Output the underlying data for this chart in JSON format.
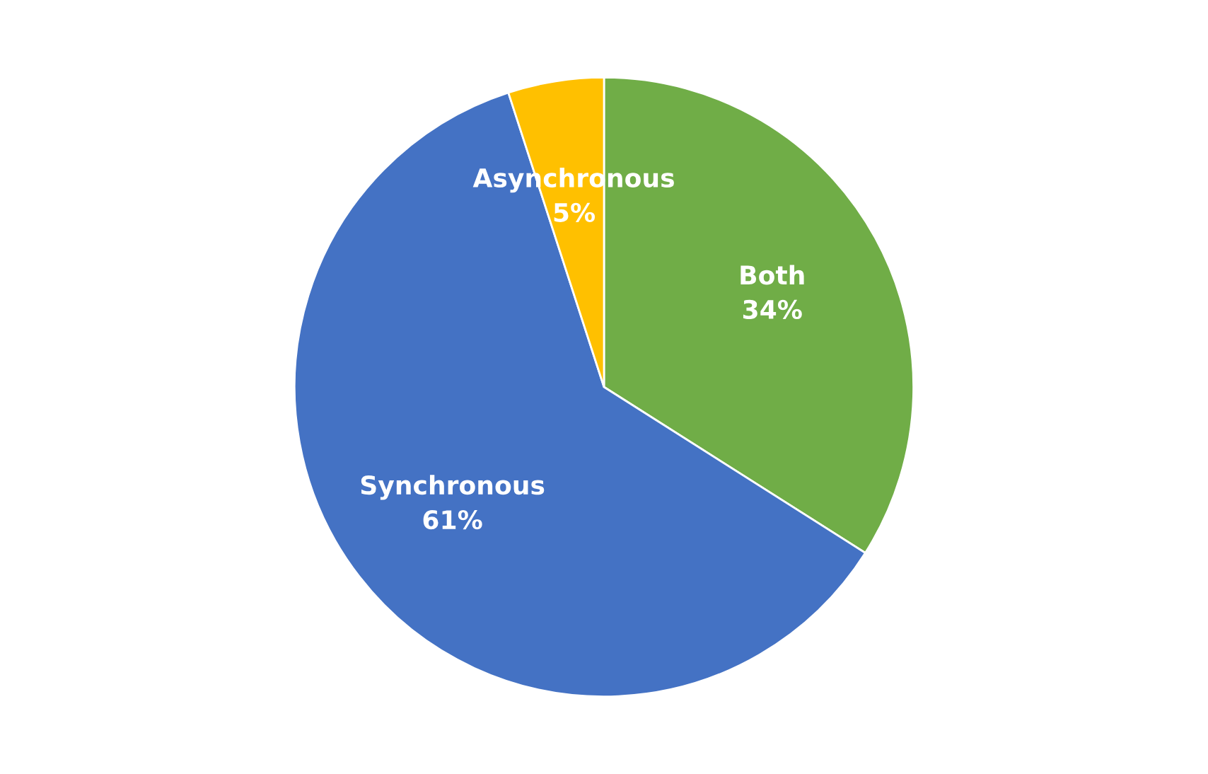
{
  "chart_data": {
    "type": "pie",
    "categories": [
      "Both",
      "Synchronous",
      "Asynchronous"
    ],
    "values": [
      34,
      61,
      5
    ],
    "value_labels": [
      "34%",
      "61%",
      "5%"
    ],
    "colors": [
      "#70ad47",
      "#4472c4",
      "#ffc000"
    ],
    "legend": false
  }
}
